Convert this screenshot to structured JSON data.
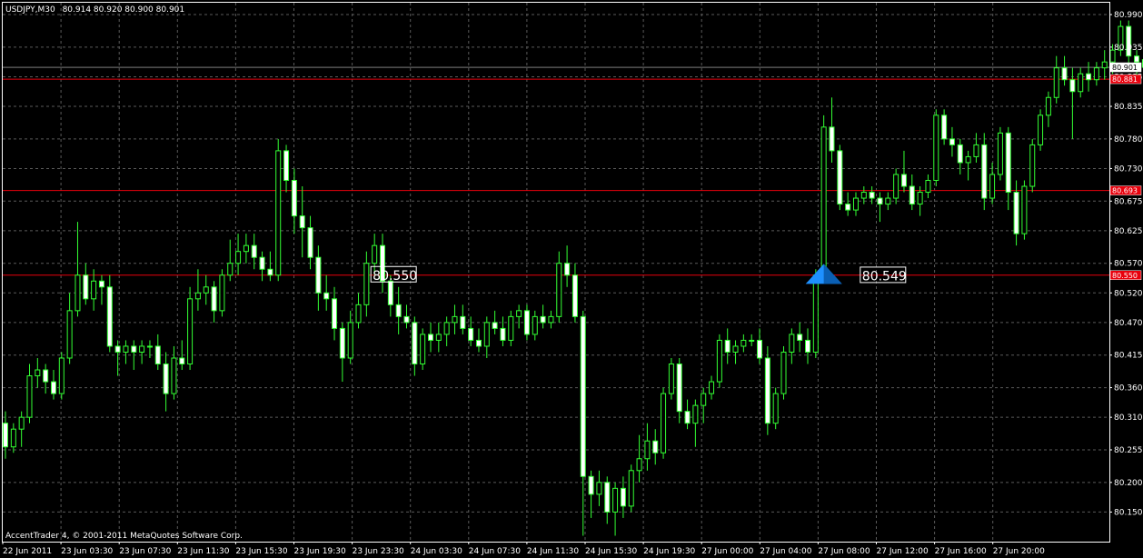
{
  "header": {
    "symbol": "USDJPY,M30",
    "ohlc": "80.914 80.920 80.900 80.901"
  },
  "copyright": "AccentTrader 4, © 2001-2011 MetaQuotes Software Corp.",
  "colors": {
    "background": "#000000",
    "grid": "#5a5a5a",
    "candle": "#33ff33",
    "frame": "#ffffff",
    "level_line": "#e8000c",
    "arrow": "#1e90ff"
  },
  "chart_data": {
    "type": "candlestick",
    "ylim": [
      80.1,
      81.01
    ],
    "y_ticks": [
      "80.990",
      "80.935",
      "80.885",
      "80.835",
      "80.780",
      "80.730",
      "80.675",
      "80.625",
      "80.570",
      "80.520",
      "80.470",
      "80.415",
      "80.360",
      "80.310",
      "80.255",
      "80.200",
      "80.150"
    ],
    "x_ticks": [
      "22 Jun 2011",
      "23 Jun 03:30",
      "23 Jun 07:30",
      "23 Jun 11:30",
      "23 Jun 15:30",
      "23 Jun 19:30",
      "23 Jun 23:30",
      "24 Jun 03:30",
      "24 Jun 07:30",
      "24 Jun 11:30",
      "24 Jun 15:30",
      "24 Jun 19:30",
      "27 Jun 00:00",
      "27 Jun 04:00",
      "27 Jun 08:00",
      "27 Jun 12:00",
      "27 Jun 16:00",
      "27 Jun 20:00"
    ],
    "current_price": "80.901",
    "levels": [
      "80.881",
      "80.693",
      "80.550"
    ],
    "annotations": [
      {
        "text": "80.550",
        "x_index": 46,
        "y": 80.55
      },
      {
        "text": "80.549",
        "x_index": 107,
        "y": 80.549
      }
    ],
    "arrow": {
      "type": "buy-arrow",
      "x_index": 102,
      "y": 80.549
    },
    "candles": [
      [
        80.3,
        80.32,
        80.24,
        80.26
      ],
      [
        80.26,
        80.3,
        80.25,
        80.29
      ],
      [
        80.29,
        80.32,
        80.26,
        80.31
      ],
      [
        80.31,
        80.4,
        80.3,
        80.38
      ],
      [
        80.38,
        80.41,
        80.36,
        80.39
      ],
      [
        80.39,
        80.4,
        80.35,
        80.37
      ],
      [
        80.37,
        80.39,
        80.34,
        80.35
      ],
      [
        80.35,
        80.42,
        80.34,
        80.41
      ],
      [
        80.41,
        80.52,
        80.4,
        80.49
      ],
      [
        80.49,
        80.64,
        80.48,
        80.55
      ],
      [
        80.55,
        80.57,
        80.5,
        80.51
      ],
      [
        80.51,
        80.56,
        80.49,
        80.54
      ],
      [
        80.54,
        80.55,
        80.5,
        80.53
      ],
      [
        80.53,
        80.55,
        80.42,
        80.43
      ],
      [
        80.43,
        80.44,
        80.38,
        80.42
      ],
      [
        80.42,
        80.44,
        80.4,
        80.43
      ],
      [
        80.43,
        80.44,
        80.39,
        80.42
      ],
      [
        80.42,
        80.44,
        80.4,
        80.43
      ],
      [
        80.43,
        80.44,
        80.41,
        80.43
      ],
      [
        80.43,
        80.45,
        80.39,
        80.4
      ],
      [
        80.4,
        80.42,
        80.32,
        80.35
      ],
      [
        80.35,
        80.43,
        80.34,
        80.41
      ],
      [
        80.41,
        80.44,
        80.39,
        80.4
      ],
      [
        80.4,
        80.53,
        80.39,
        80.51
      ],
      [
        80.51,
        80.56,
        80.49,
        80.52
      ],
      [
        80.52,
        80.55,
        80.5,
        80.53
      ],
      [
        80.53,
        80.54,
        80.47,
        80.49
      ],
      [
        80.49,
        80.56,
        80.48,
        80.55
      ],
      [
        80.55,
        80.61,
        80.54,
        80.57
      ],
      [
        80.57,
        80.62,
        80.55,
        80.59
      ],
      [
        80.59,
        80.62,
        80.57,
        80.6
      ],
      [
        80.6,
        80.62,
        80.56,
        80.58
      ],
      [
        80.58,
        80.59,
        80.54,
        80.56
      ],
      [
        80.56,
        80.59,
        80.54,
        80.55
      ],
      [
        80.55,
        80.78,
        80.54,
        80.76
      ],
      [
        80.76,
        80.77,
        80.69,
        80.71
      ],
      [
        80.71,
        80.73,
        80.62,
        80.65
      ],
      [
        80.65,
        80.7,
        80.58,
        80.63
      ],
      [
        80.63,
        80.65,
        80.56,
        80.58
      ],
      [
        80.58,
        80.6,
        80.49,
        80.52
      ],
      [
        80.52,
        80.55,
        80.49,
        80.51
      ],
      [
        80.51,
        80.53,
        80.44,
        80.46
      ],
      [
        80.46,
        80.47,
        80.37,
        80.41
      ],
      [
        80.41,
        80.49,
        80.4,
        80.47
      ],
      [
        80.47,
        80.52,
        80.46,
        80.5
      ],
      [
        80.5,
        80.59,
        80.48,
        80.57
      ],
      [
        80.57,
        80.62,
        80.55,
        80.6
      ],
      [
        80.6,
        80.62,
        80.52,
        80.54
      ],
      [
        80.54,
        80.55,
        80.48,
        80.5
      ],
      [
        80.5,
        80.53,
        80.45,
        80.48
      ],
      [
        80.48,
        80.5,
        80.46,
        80.47
      ],
      [
        80.47,
        80.48,
        80.38,
        80.4
      ],
      [
        80.4,
        80.46,
        80.39,
        80.45
      ],
      [
        80.45,
        80.47,
        80.42,
        80.44
      ],
      [
        80.44,
        80.47,
        80.42,
        80.45
      ],
      [
        80.45,
        80.48,
        80.43,
        80.47
      ],
      [
        80.47,
        80.5,
        80.45,
        80.48
      ],
      [
        80.48,
        80.5,
        80.45,
        80.46
      ],
      [
        80.46,
        80.48,
        80.43,
        80.44
      ],
      [
        80.44,
        80.46,
        80.42,
        80.43
      ],
      [
        80.43,
        80.48,
        80.41,
        80.47
      ],
      [
        80.47,
        80.49,
        80.45,
        80.46
      ],
      [
        80.46,
        80.48,
        80.43,
        80.44
      ],
      [
        80.44,
        80.49,
        80.43,
        80.48
      ],
      [
        80.48,
        80.5,
        80.46,
        80.49
      ],
      [
        80.49,
        80.5,
        80.44,
        80.45
      ],
      [
        80.45,
        80.49,
        80.44,
        80.48
      ],
      [
        80.48,
        80.5,
        80.46,
        80.47
      ],
      [
        80.47,
        80.49,
        80.46,
        80.48
      ],
      [
        80.48,
        80.59,
        80.47,
        80.57
      ],
      [
        80.57,
        80.6,
        80.53,
        80.55
      ],
      [
        80.55,
        80.57,
        80.47,
        80.48
      ],
      [
        80.48,
        80.49,
        80.11,
        80.21
      ],
      [
        80.21,
        80.22,
        80.14,
        80.18
      ],
      [
        80.18,
        80.22,
        80.16,
        80.2
      ],
      [
        80.2,
        80.21,
        80.13,
        80.15
      ],
      [
        80.15,
        80.2,
        80.11,
        80.19
      ],
      [
        80.19,
        80.21,
        80.14,
        80.16
      ],
      [
        80.16,
        80.23,
        80.15,
        80.22
      ],
      [
        80.22,
        80.28,
        80.2,
        80.24
      ],
      [
        80.24,
        80.3,
        80.22,
        80.27
      ],
      [
        80.27,
        80.29,
        80.23,
        80.25
      ],
      [
        80.25,
        80.36,
        80.24,
        80.35
      ],
      [
        80.35,
        80.41,
        80.34,
        80.4
      ],
      [
        80.4,
        80.41,
        80.3,
        80.32
      ],
      [
        80.32,
        80.34,
        80.29,
        80.3
      ],
      [
        80.3,
        80.34,
        80.26,
        80.33
      ],
      [
        80.33,
        80.36,
        80.3,
        80.35
      ],
      [
        80.35,
        80.38,
        80.34,
        80.37
      ],
      [
        80.37,
        80.45,
        80.36,
        80.44
      ],
      [
        80.44,
        80.46,
        80.4,
        80.42
      ],
      [
        80.42,
        80.44,
        80.4,
        80.43
      ],
      [
        80.43,
        80.45,
        80.42,
        80.44
      ],
      [
        80.44,
        80.45,
        80.43,
        80.44
      ],
      [
        80.44,
        80.46,
        80.4,
        80.41
      ],
      [
        80.41,
        80.43,
        80.28,
        80.3
      ],
      [
        80.3,
        80.36,
        80.29,
        80.35
      ],
      [
        80.35,
        80.43,
        80.34,
        80.42
      ],
      [
        80.42,
        80.46,
        80.4,
        80.45
      ],
      [
        80.45,
        80.47,
        80.42,
        80.44
      ],
      [
        80.44,
        80.46,
        80.4,
        80.42
      ],
      [
        80.42,
        80.56,
        80.41,
        80.55
      ],
      [
        80.55,
        80.82,
        80.54,
        80.8
      ],
      [
        80.8,
        80.85,
        80.74,
        80.76
      ],
      [
        80.76,
        80.77,
        80.66,
        80.67
      ],
      [
        80.67,
        80.69,
        80.65,
        80.66
      ],
      [
        80.66,
        80.69,
        80.65,
        80.68
      ],
      [
        80.68,
        80.7,
        80.67,
        80.69
      ],
      [
        80.69,
        80.7,
        80.67,
        80.68
      ],
      [
        80.68,
        80.69,
        80.64,
        80.67
      ],
      [
        80.67,
        80.69,
        80.66,
        80.68
      ],
      [
        80.68,
        80.73,
        80.67,
        80.72
      ],
      [
        80.72,
        80.76,
        80.69,
        80.7
      ],
      [
        80.7,
        80.72,
        80.66,
        80.67
      ],
      [
        80.67,
        80.7,
        80.65,
        80.69
      ],
      [
        80.69,
        80.72,
        80.68,
        80.71
      ],
      [
        80.71,
        80.83,
        80.7,
        80.82
      ],
      [
        80.82,
        80.83,
        80.77,
        80.78
      ],
      [
        80.78,
        80.8,
        80.75,
        80.77
      ],
      [
        80.77,
        80.78,
        80.72,
        80.74
      ],
      [
        80.74,
        80.76,
        80.71,
        80.75
      ],
      [
        80.75,
        80.79,
        80.74,
        80.77
      ],
      [
        80.77,
        80.79,
        80.66,
        80.68
      ],
      [
        80.68,
        80.74,
        80.67,
        80.72
      ],
      [
        80.72,
        80.8,
        80.71,
        80.79
      ],
      [
        80.79,
        80.8,
        80.66,
        80.69
      ],
      [
        80.69,
        80.71,
        80.6,
        80.62
      ],
      [
        80.62,
        80.71,
        80.61,
        80.7
      ],
      [
        80.7,
        80.78,
        80.69,
        80.77
      ],
      [
        80.77,
        80.83,
        80.76,
        80.82
      ],
      [
        80.82,
        80.86,
        80.8,
        80.85
      ],
      [
        80.85,
        80.92,
        80.84,
        80.9
      ],
      [
        80.9,
        80.92,
        80.87,
        80.88
      ],
      [
        80.88,
        80.9,
        80.78,
        80.86
      ],
      [
        80.86,
        80.9,
        80.85,
        80.89
      ],
      [
        80.89,
        80.91,
        80.86,
        80.88
      ],
      [
        80.88,
        80.91,
        80.87,
        80.9
      ],
      [
        80.9,
        80.93,
        80.88,
        80.91
      ],
      [
        80.91,
        80.94,
        80.89,
        80.93
      ],
      [
        80.93,
        80.98,
        80.92,
        80.97
      ],
      [
        80.97,
        80.98,
        80.9,
        80.92
      ],
      [
        80.92,
        80.93,
        80.88,
        80.91
      ],
      [
        80.914,
        80.92,
        80.9,
        80.901
      ]
    ]
  }
}
